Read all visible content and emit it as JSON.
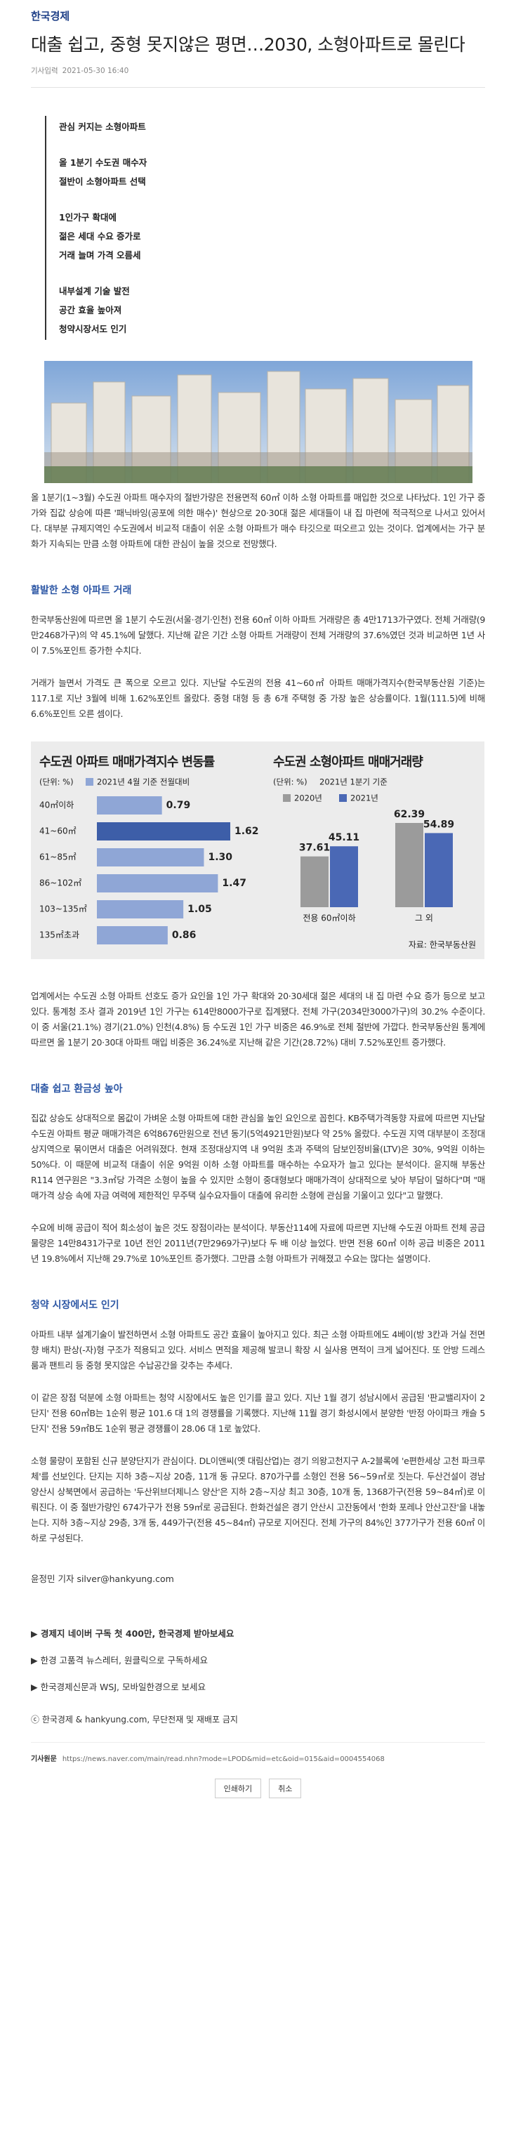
{
  "header": {
    "brand": "한국경제"
  },
  "article": {
    "title": "대출 쉽고, 중형 못지않은 평면…2030, 소형아파트로 몰린다",
    "date_label": "기사입력",
    "date": "2021-05-30 16:40",
    "summary": [
      [
        "관심 커지는 소형아파트"
      ],
      [
        "올 1분기 수도권 매수자",
        "절반이 소형아파트 선택"
      ],
      [
        "1인가구 확대에",
        "젊은 세대 수요 증가로",
        "거래 늘며 가격 오름세"
      ],
      [
        "내부설계 기술 발전",
        "공간 효율 높아져",
        "청약시장서도 인기"
      ]
    ],
    "paragraphs": [
      "올 1분기(1~3월) 수도권 아파트 매수자의 절반가량은 전용면적 60㎡ 이하 소형 아파트를 매입한 것으로 나타났다. 1인 가구 증가와 집값 상승에 따른 '패닉바잉(공포에 의한 매수)' 현상으로 20·30대 젊은 세대들이 내 집 마련에 적극적으로 나서고 있어서다. 대부분 규제지역인 수도권에서 비교적 대출이 쉬운 소형 아파트가 매수 타깃으로 떠오르고 있는 것이다. 업계에서는 가구 분화가 지속되는 만큼 소형 아파트에 대한 관심이 높을 것으로 전망했다.",
      "한국부동산원에 따르면 올 1분기 수도권(서울·경기·인천) 전용 60㎡ 이하 아파트 거래량은 총 4만1713가구였다. 전체 거래량(9만2468가구)의 약 45.1%에 달했다. 지난해 같은 기간 소형 아파트 거래량이 전체 거래량의 37.6%였던 것과 비교하면 1년 사이 7.5%포인트 증가한 수치다.",
      "거래가 늘면서 가격도 큰 폭으로 오르고 있다. 지난달 수도권의 전용 41~60㎡ 아파트 매매가격지수(한국부동산원 기준)는 117.1로 지난 3월에 비해 1.62%포인트 올랐다. 중형 대형 등 총 6개 주택형 중 가장 높은 상승률이다. 1월(111.5)에 비해 6.6%포인트 오른 셈이다.",
      "업계에서는 수도권 소형 아파트 선호도 증가 요인을 1인 가구 확대와 20·30세대 젊은 세대의 내 집 마련 수요 증가 등으로 보고 있다. 통계청 조사 결과 2019년 1인 가구는 614만8000가구로 집계됐다. 전체 가구(2034만3000가구)의 30.2% 수준이다. 이 중 서울(21.1%) 경기(21.0%) 인천(4.8%) 등 수도권 1인 가구 비중은 46.9%로 전체 절반에 가깝다. 한국부동산원 통계에 따르면 올 1분기 20·30대 아파트 매입 비중은 36.24%로 지난해 같은 기간(28.72%) 대비 7.52%포인트 증가했다.",
      "집값 상승도 상대적으로 몸값이 가벼운 소형 아파트에 대한 관심을 높인 요인으로 꼽힌다. KB주택가격동향 자료에 따르면 지난달 수도권 아파트 평균 매매가격은 6억8676만원으로 전년 동기(5억4921만원)보다 약 25% 올랐다. 수도권 지역 대부분이 조정대상지역으로 묶이면서 대출은 어려워졌다. 현재 조정대상지역 내 9억원 초과 주택의 담보인정비율(LTV)은 30%, 9억원 이하는 50%다. 이 때문에 비교적 대출이 쉬운 9억원 이하 소형 아파트를 매수하는 수요자가 늘고 있다는 분석이다. 윤지해 부동산R114 연구원은 \"3.3㎡당 가격은 소형이 높을 수 있지만 소형이 중대형보다 매매가격이 상대적으로 낮아 부담이 덜하다\"며 \"매매가격 상승 속에 자금 여력에 제한적인 무주택 실수요자들이 대출에 유리한 소형에 관심을 기울이고 있다\"고 말했다.",
      "수요에 비해 공급이 적어 희소성이 높은 것도 장점이라는 분석이다. 부동산114에 자료에 따르면 지난해 수도권 아파트 전체 공급 물량은 14만8431가구로 10년 전인 2011년(7만2969가구)보다 두 배 이상 늘었다. 반면 전용 60㎡ 이하 공급 비중은 2011년 19.8%에서 지난해 29.7%로 10%포인트 증가했다. 그만큼 소형 아파트가 귀해졌고 수요는 많다는 설명이다.",
      "아파트 내부 설계기술이 발전하면서 소형 아파트도 공간 효율이 높아지고 있다. 최근 소형 아파트에도 4베이(방 3칸과 거실 전면향 배치) 판상(-자)형 구조가 적용되고 있다. 서비스 면적을 제공해 발코니 확장 시 실사용 면적이 크게 넓어진다. 또 안방 드레스룸과 팬트리 등 중형 못지않은 수납공간을 갖추는 추세다.",
      "이 같은 장점 덕분에 소형 아파트는 청약 시장에서도 높은 인기를 끌고 있다. 지난 1월 경기 성남시에서 공급된 '판교밸리자이 2단지' 전용 60㎡B는 1순위 평균 101.6 대 1의 경쟁률을 기록했다. 지난해 11월 경기 화성시에서 분양한 '반정 아이파크 캐슬 5단지' 전용 59㎡B도 1순위 평균 경쟁률이 28.06 대 1로 높았다.",
      "소형 물량이 포함된 신규 분양단지가 관심이다. DL이앤씨(옛 대림산업)는 경기 의왕고천지구 A-2블록에 'e편한세상 고천 파크루체'를 선보인다. 단지는 지하 3층~지상 20층, 11개 동 규모다. 870가구를 소형인 전용 56~59㎡로 짓는다. 두산건설이 경남 양산시 상북면에서 공급하는 '두산위브더제니스 양산'은 지하 2층~지상 최고 30층, 10개 동, 1368가구(전용 59~84㎡)로 이뤄진다. 이 중 절반가량인 674가구가 전용 59㎡로 공급된다. 한화건설은 경기 안산시 고잔동에서 '한화 포레나 안산고잔'을 내놓는다. 지하 3층~지상 29층, 3개 동, 449가구(전용 45~84㎡) 규모로 지어진다. 전체 가구의 84%인 377가구가 전용 60㎡ 이하로 구성된다."
    ],
    "headings": [
      "활발한 소형 아파트 거래",
      "대출 쉽고 환금성 높아",
      "청약 시장에서도 인기"
    ],
    "reporter": "윤정민 기자 silver@hankyung.com"
  },
  "chart_data": [
    {
      "type": "bar",
      "orientation": "horizontal",
      "title": "수도권 아파트 매매가격지수 변동률",
      "subtitle": "(단위: %)",
      "categories": [
        "40㎡이하",
        "41~60㎡",
        "61~85㎡",
        "86~102㎡",
        "103~135㎡",
        "135㎡초과"
      ],
      "series": [
        {
          "name": "2021년 4월 기준 전월대비",
          "color": "#8fa6d6",
          "bar_colors": [
            "#8fa6d6",
            "#3d5ea8",
            "#8fa6d6",
            "#8fa6d6",
            "#8fa6d6",
            "#8fa6d6"
          ],
          "values": [
            0.79,
            1.62,
            1.3,
            1.47,
            1.05,
            0.86
          ],
          "value_labels": [
            "0.79",
            "1.62",
            "1.30",
            "1.47",
            "1.05",
            "0.86"
          ]
        }
      ]
    },
    {
      "type": "bar",
      "orientation": "vertical",
      "title": "수도권 소형아파트 매매거래량",
      "subtitle": "(단위: %)",
      "note": "2021년 1분기 기준",
      "categories": [
        "전용 60㎡이하",
        "그 외"
      ],
      "series": [
        {
          "name": "2020년",
          "color": "#9b9b9b",
          "values": [
            37.61,
            62.39
          ]
        },
        {
          "name": "2021년",
          "color": "#4a68b5",
          "values": [
            45.11,
            54.89
          ]
        }
      ],
      "source": "자료: 한국부동산원"
    }
  ],
  "footer": {
    "links": [
      "▶ 경제지 네이버 구독 첫 400만, 한국경제 받아보세요",
      "▶ 한경 고품격 뉴스레터, 원클릭으로 구독하세요",
      "▶ 한국경제신문과 WSJ, 모바일한경으로 보세요"
    ],
    "copyright": "ⓒ 한국경제 & hankyung.com, 무단전재 및 재배포 금지",
    "url_label": "기사원문",
    "url": "https://news.naver.com/main/read.nhn?mode=LPOD&mid=etc&oid=015&aid=0004554068",
    "buttons": [
      "인쇄하기",
      "취소"
    ]
  }
}
